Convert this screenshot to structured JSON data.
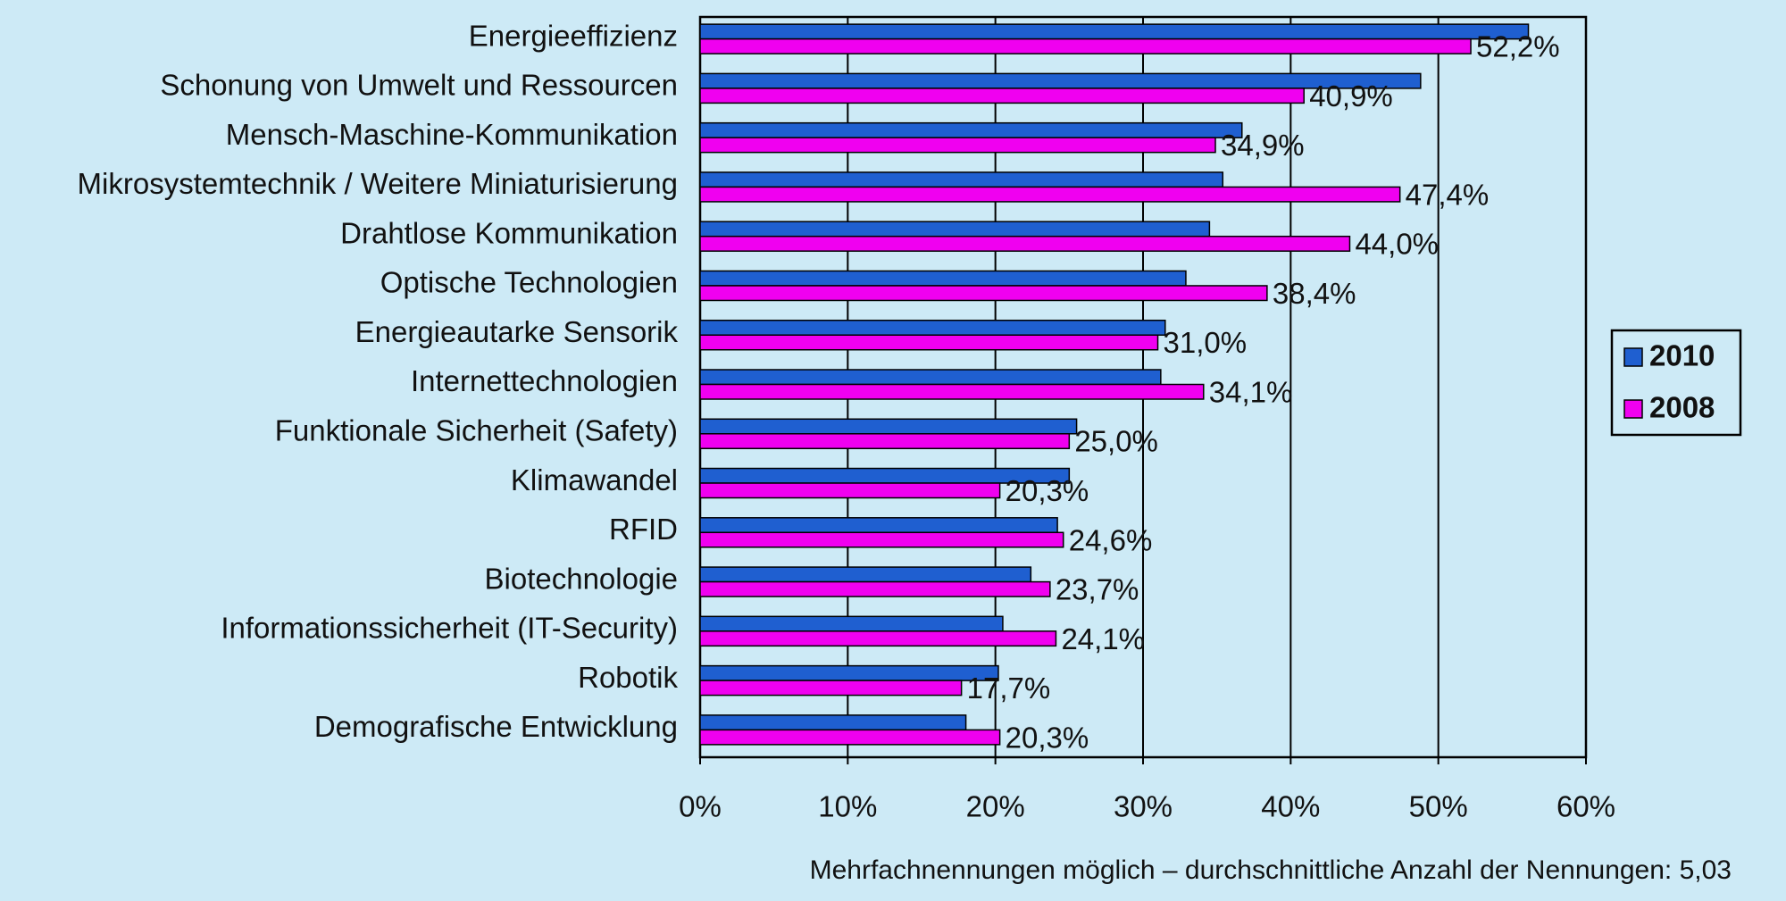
{
  "chart_data": {
    "type": "hbar",
    "categories": [
      "Energieeffizienz",
      "Schonung von Umwelt und Ressourcen",
      "Mensch-Maschine-Kommunikation",
      "Mikrosystemtechnik / Weitere Miniaturisierung",
      "Drahtlose Kommunikation",
      "Optische Technologien",
      "Energieautarke Sensorik",
      "Internettechnologien",
      "Funktionale Sicherheit (Safety)",
      "Klimawandel",
      "RFID",
      "Biotechnologie",
      "Informationssicherheit (IT-Security)",
      "Robotik",
      "Demografische Entwicklung"
    ],
    "series": [
      {
        "name": "2010",
        "color": "#1f5fd0",
        "values": [
          56.1,
          48.8,
          36.7,
          35.4,
          34.5,
          32.9,
          31.5,
          31.2,
          25.5,
          25.0,
          24.2,
          22.4,
          20.5,
          20.2,
          18.0
        ]
      },
      {
        "name": "2008",
        "color": "#f000f0",
        "values": [
          52.2,
          40.9,
          34.9,
          47.4,
          44.0,
          38.4,
          31.0,
          34.1,
          25.0,
          20.3,
          24.6,
          23.7,
          24.1,
          17.7,
          20.3
        ],
        "value_labels": [
          "52,2%",
          "40,9%",
          "34,9%",
          "47,4%",
          "44,0%",
          "38,4%",
          "31,0%",
          "34,1%",
          "25,0%",
          "20,3%",
          "24,6%",
          "23,7%",
          "24,1%",
          "17,7%",
          "20,3%"
        ]
      }
    ],
    "xlim": [
      0,
      60
    ],
    "xticks": [
      {
        "value": 0,
        "label": "0%"
      },
      {
        "value": 10,
        "label": "10%"
      },
      {
        "value": 20,
        "label": "20%"
      },
      {
        "value": 30,
        "label": "30%"
      },
      {
        "value": 40,
        "label": "40%"
      },
      {
        "value": 50,
        "label": "50%"
      },
      {
        "value": 60,
        "label": "60%"
      }
    ],
    "grid": true,
    "legend": "right",
    "note": "Mehrfachnennungen möglich – durchschnittliche Anzahl der Nennungen: 5,03"
  }
}
